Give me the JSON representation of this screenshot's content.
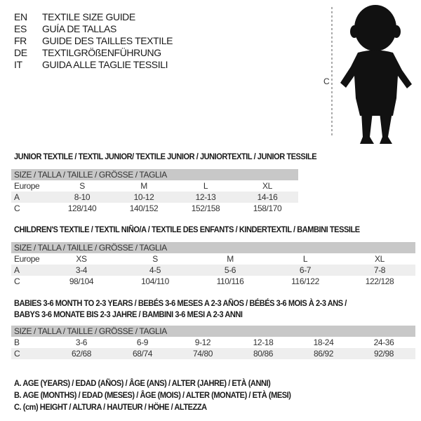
{
  "languages": [
    {
      "code": "EN",
      "title": "TEXTILE SIZE GUIDE"
    },
    {
      "code": "ES",
      "title": "GUÍA DE TALLAS"
    },
    {
      "code": "FR",
      "title": "GUIDE DES TAILLES TEXTILE"
    },
    {
      "code": "DE",
      "title": "TEXTILGRÖßENFÜHRUNG"
    },
    {
      "code": "IT",
      "title": "GUIDA ALLE TAGLIE TESSILI"
    }
  ],
  "figure": {
    "measure_label": "C"
  },
  "tables": [
    {
      "title": "JUNIOR TEXTILE / TEXTIL JUNIOR/ TEXTILE JUNIOR / JUNIORTEXTIL / JUNIOR TESSILE",
      "header": "SIZE / TALLA / TAILLE / GRÖSSE / TAGLIA",
      "rows": [
        {
          "label": "Europe",
          "values": [
            "S",
            "M",
            "L",
            "XL"
          ]
        },
        {
          "label": "A",
          "values": [
            "8-10",
            "10-12",
            "12-13",
            "14-16"
          ]
        },
        {
          "label": "C",
          "values": [
            "128/140",
            "140/152",
            "152/158",
            "158/170"
          ]
        }
      ]
    },
    {
      "title": "CHILDREN'S TEXTILE / TEXTIL NIÑO/A / TEXTILE DES ENFANTS / KINDERTEXTIL / BAMBINI TESSILE",
      "header": "SIZE / TALLA / TAILLE / GRÖSSE / TAGLIA",
      "rows": [
        {
          "label": "Europe",
          "values": [
            "XS",
            "S",
            "M",
            "L",
            "XL"
          ]
        },
        {
          "label": "A",
          "values": [
            "3-4",
            "4-5",
            "5-6",
            "6-7",
            "7-8"
          ]
        },
        {
          "label": "C",
          "values": [
            "98/104",
            "104/110",
            "110/116",
            "116/122",
            "122/128"
          ]
        }
      ]
    },
    {
      "title": "BABIES 3-6 MONTH TO 2-3 YEARS / BEBÉS 3-6 MESES A 2-3 AÑOS / BÉBÉS 3-6 MOIS À 2-3 ANS /",
      "title2": "BABYS 3-6 MONATE BIS 2-3 JAHRE / BAMBINI 3-6 MESI A 2-3 ANNI",
      "header": "SIZE / TALLA / TAILLE / GRÖSSE / TAGLIA",
      "rows": [
        {
          "label": "B",
          "values": [
            "3-6",
            "6-9",
            "9-12",
            "12-18",
            "18-24",
            "24-36"
          ]
        },
        {
          "label": "C",
          "values": [
            "62/68",
            "68/74",
            "74/80",
            "80/86",
            "86/92",
            "92/98"
          ]
        }
      ]
    }
  ],
  "legend": [
    "A. AGE (YEARS) / EDAD (AÑOS) / ÂGE (ANS) / ALTER (JAHRE) / ETÀ (ANNI)",
    "B. AGE (MONTHS) / EDAD (MESES) / ÂGE (MOIS) / ALTER (MONATE) / ETÀ (MESI)",
    "C. (cm) HEIGHT / ALTURA / HAUTEUR / HÖHE / ALTEZZA"
  ]
}
